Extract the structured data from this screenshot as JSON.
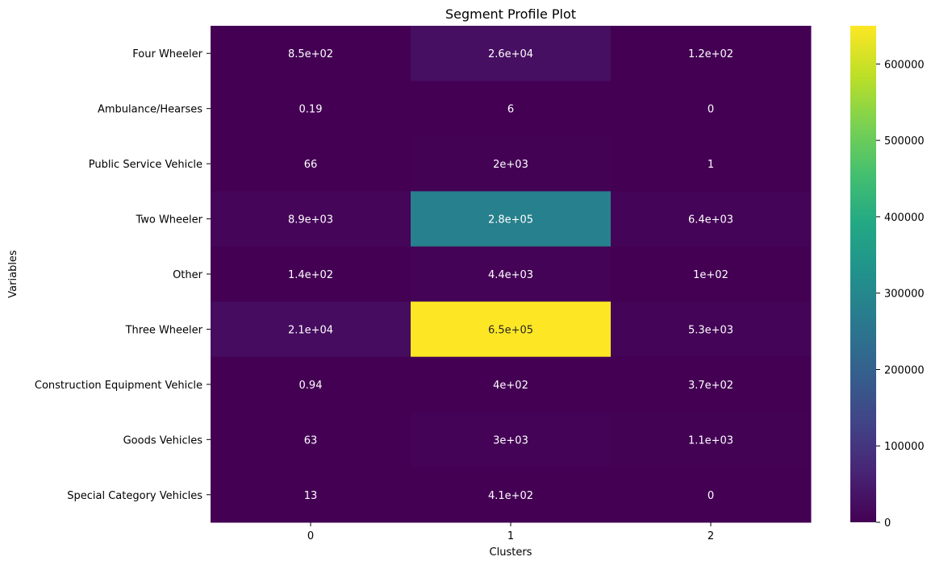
{
  "chart_data": {
    "type": "heatmap",
    "title": "Segment Profile Plot",
    "xlabel": "Clusters",
    "ylabel": "Variables",
    "x_categories": [
      "0",
      "1",
      "2"
    ],
    "y_categories": [
      "Four Wheeler",
      "Ambulance/Hearses",
      "Public Service Vehicle",
      "Two Wheeler",
      "Other",
      "Three Wheeler",
      "Construction Equipment Vehicle",
      "Goods Vehicles",
      "Special Category Vehicles"
    ],
    "values": [
      [
        850,
        26000,
        120
      ],
      [
        0.19,
        6,
        0
      ],
      [
        66,
        2000,
        1
      ],
      [
        8900,
        280000,
        6400
      ],
      [
        140,
        4400,
        100
      ],
      [
        21000,
        650000,
        5300
      ],
      [
        0.94,
        400,
        370
      ],
      [
        63,
        3000,
        1100
      ],
      [
        13,
        410,
        0
      ]
    ],
    "labels": [
      [
        "8.5e+02",
        "2.6e+04",
        "1.2e+02"
      ],
      [
        "0.19",
        "6",
        "0"
      ],
      [
        "66",
        "2e+03",
        "1"
      ],
      [
        "8.9e+03",
        "2.8e+05",
        "6.4e+03"
      ],
      [
        "1.4e+02",
        "4.4e+03",
        "1e+02"
      ],
      [
        "2.1e+04",
        "6.5e+05",
        "5.3e+03"
      ],
      [
        "0.94",
        "4e+02",
        "3.7e+02"
      ],
      [
        "63",
        "3e+03",
        "1.1e+03"
      ],
      [
        "13",
        "4.1e+02",
        "0"
      ]
    ],
    "colormap": "viridis",
    "vmin": 0,
    "vmax": 650000,
    "colorbar_ticks": [
      0,
      100000,
      200000,
      300000,
      400000,
      500000,
      600000
    ],
    "colorbar_tick_labels": [
      "0",
      "100000",
      "200000",
      "300000",
      "400000",
      "500000",
      "600000"
    ]
  }
}
